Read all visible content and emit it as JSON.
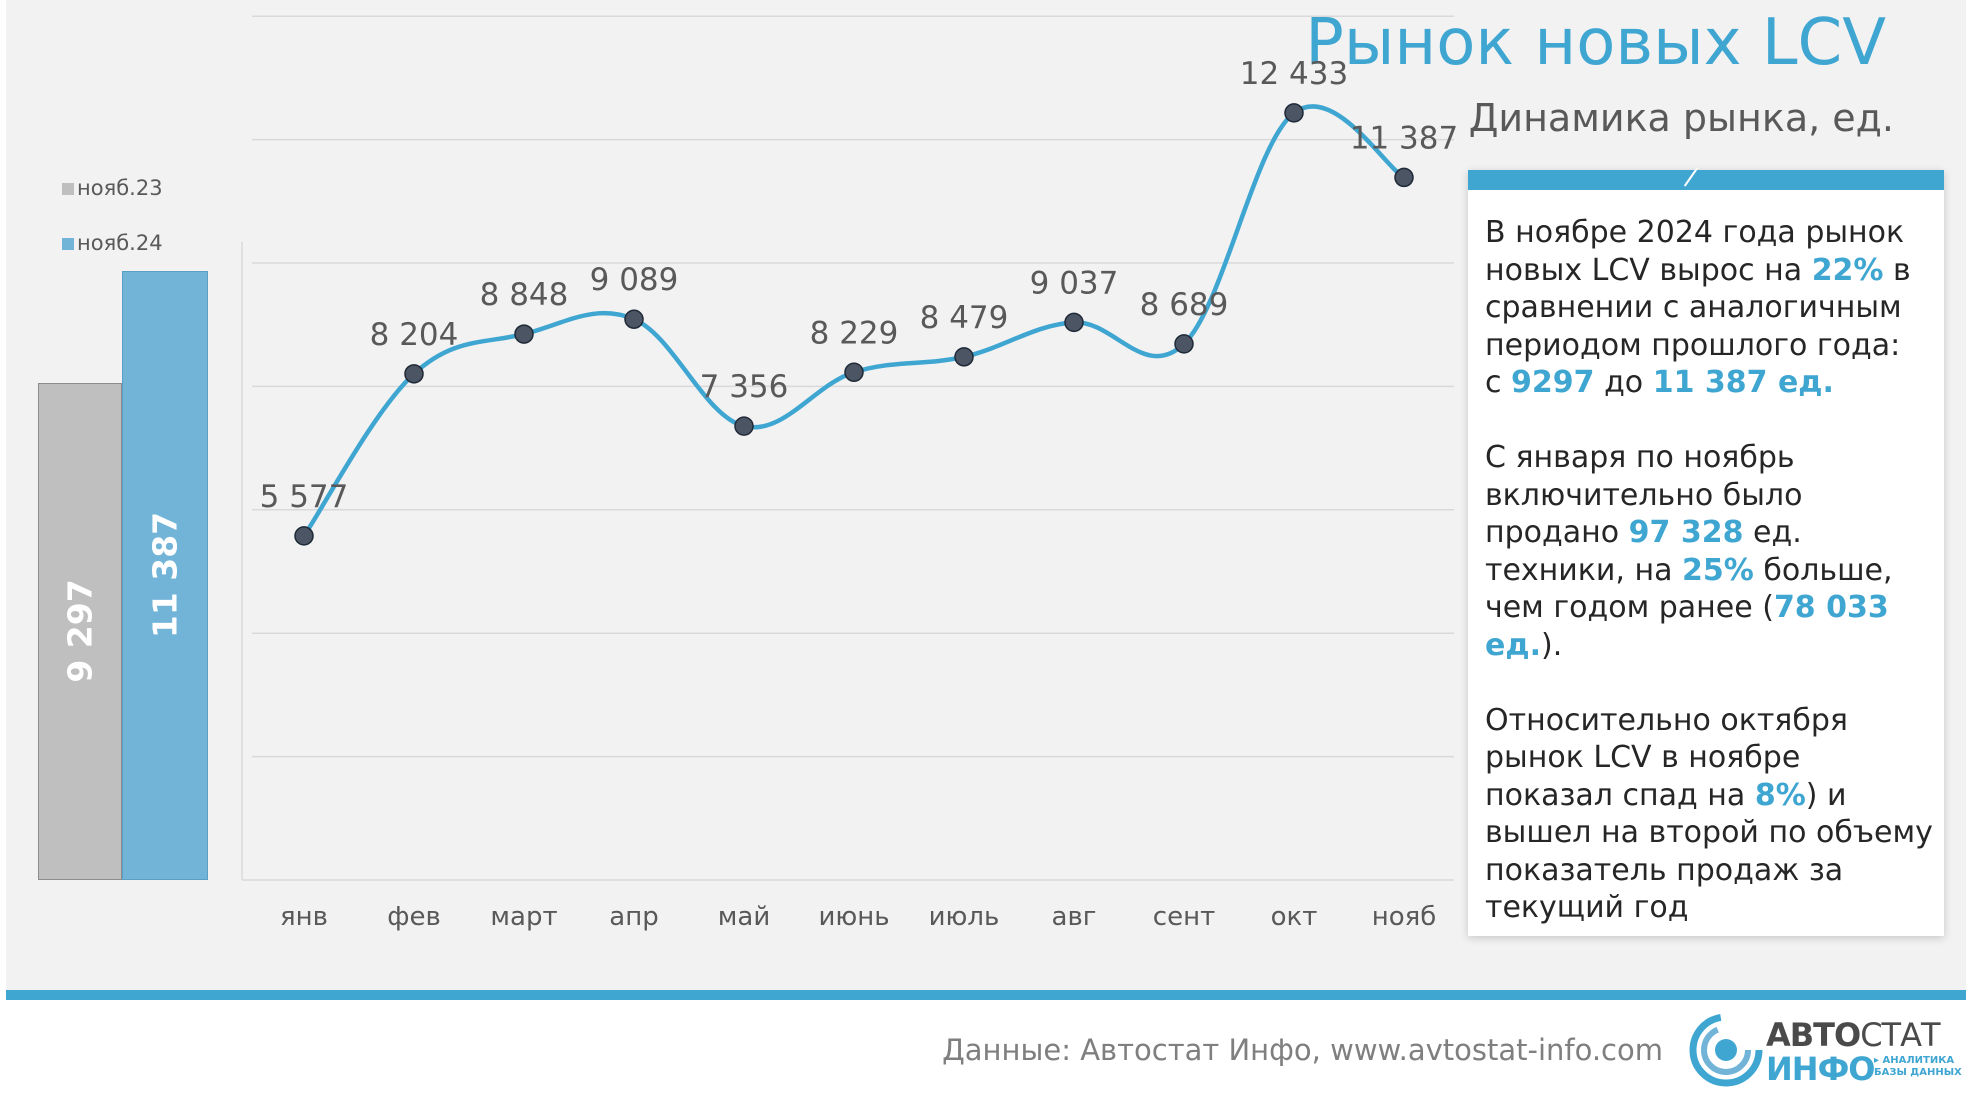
{
  "header": {
    "title": "Рынок новых LCV",
    "subtitle": "Динамика рынка, ед."
  },
  "bar_legend": [
    {
      "label": "нояб.23",
      "color": "#bfbfbf"
    },
    {
      "label": "нояб.24",
      "color": "#71b4d8"
    }
  ],
  "chart_data": [
    {
      "type": "bar",
      "categories": [
        "нояб.23",
        "нояб.24"
      ],
      "values": [
        9297,
        11387
      ],
      "value_labels": [
        "9 297",
        "11 387"
      ],
      "colors": [
        "#bfbfbf",
        "#71b4d8"
      ]
    },
    {
      "type": "line",
      "title": "",
      "categories": [
        "янв",
        "фев",
        "март",
        "апр",
        "май",
        "июнь",
        "июль",
        "авг",
        "сент",
        "окт",
        "нояб"
      ],
      "values": [
        5577,
        8204,
        8848,
        9089,
        7356,
        8229,
        8479,
        9037,
        8689,
        12433,
        11387
      ],
      "value_labels": [
        "5 577",
        "8 204",
        "8 848",
        "9 089",
        "7 356",
        "8 229",
        "8 479",
        "9 037",
        "8 689",
        "12 433",
        "11 387"
      ],
      "ylim": [
        0,
        14000
      ],
      "grid": true,
      "line_color": "#3fa6d2",
      "marker_color": "#4b5563"
    }
  ],
  "info": {
    "p1": {
      "t1": "В ноябре 2024 года рынок новых LCV вырос на ",
      "h1": "22%",
      "t2": " в сравнении с аналогичным периодом прошлого года:",
      "t3": " с ",
      "h2": "9297",
      "t4": " до ",
      "h3": "11 387 ед."
    },
    "p2": {
      "t1": "С января по ноябрь включительно было продано ",
      "h1": "97 328",
      "t2": " ед. техники, на ",
      "h2": "25%",
      "t3": " больше, чем годом ранее (",
      "h3": "78 033 ед.",
      "t4": ")."
    },
    "p3": {
      "t1": "Относительно октября рынок LCV в ноябре показал спад на ",
      "h1": "8%",
      "t2": ") и вышел на второй по объему показатель продаж за текущий год"
    }
  },
  "footer": {
    "source": "Данные: Автостат Инфо, www.avtostat-info.com",
    "logo": {
      "word1a": "АВТО",
      "word1b": "СТАТ",
      "word2": "ИНФО",
      "tag1": "▸ АНАЛИТИКА",
      "tag2": "БАЗЫ ДАННЫХ"
    }
  }
}
